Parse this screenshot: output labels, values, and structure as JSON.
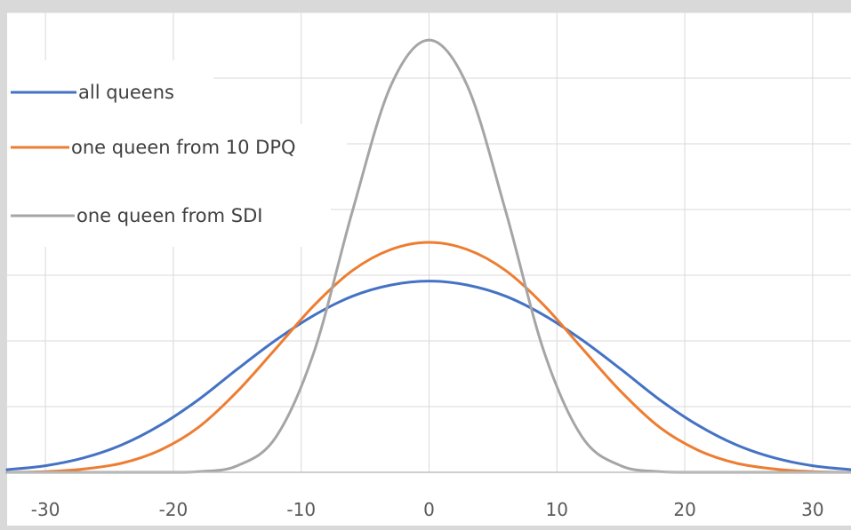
{
  "chart_data": {
    "type": "line",
    "title": "",
    "xlabel": "",
    "ylabel": "",
    "xlim": [
      -33,
      33
    ],
    "ylim": [
      0,
      0.07
    ],
    "x_ticks": [
      -30,
      -20,
      -10,
      0,
      10,
      20,
      30
    ],
    "x_tick_labels": [
      "-30",
      "-20",
      "-10",
      "0",
      "10",
      "20",
      "30"
    ],
    "grid": true,
    "legend_position": "top-left",
    "series": [
      {
        "name": "all queens",
        "color": "#4472c4",
        "x": [
          -33,
          -30,
          -27,
          -24,
          -21,
          -18,
          -15,
          -12,
          -9,
          -6,
          -3,
          0,
          3,
          6,
          9,
          12,
          15,
          18,
          21,
          24,
          27,
          30,
          33
        ],
        "y": [
          0.0004,
          0.001,
          0.0022,
          0.0042,
          0.0072,
          0.0111,
          0.0157,
          0.0201,
          0.0239,
          0.0268,
          0.0285,
          0.0291,
          0.0285,
          0.0268,
          0.0239,
          0.0201,
          0.0157,
          0.0111,
          0.0072,
          0.0042,
          0.0022,
          0.001,
          0.0004
        ]
      },
      {
        "name": "one queen from 10 DPQ",
        "color": "#ed7d31",
        "x": [
          -33,
          -30,
          -27,
          -24,
          -21,
          -18,
          -15,
          -12,
          -9,
          -6,
          -3,
          0,
          3,
          6,
          9,
          12,
          15,
          18,
          21,
          24,
          27,
          30,
          33
        ],
        "y": [
          0.0,
          0.0001,
          0.0005,
          0.0014,
          0.0034,
          0.0069,
          0.0123,
          0.0188,
          0.0254,
          0.0307,
          0.0339,
          0.035,
          0.0339,
          0.0307,
          0.0254,
          0.0188,
          0.0123,
          0.0069,
          0.0034,
          0.0014,
          0.0005,
          0.0001,
          0.0
        ]
      },
      {
        "name": "one queen from SDI",
        "color": "#a5a5a5",
        "x": [
          -33,
          -30,
          -27,
          -24,
          -21,
          -18,
          -15,
          -12,
          -9,
          -6,
          -3,
          0,
          3,
          6,
          9,
          12,
          15,
          18,
          21,
          24,
          27,
          30,
          33
        ],
        "y": [
          0.0,
          0.0,
          0.0,
          0.0,
          0.0,
          0.0001,
          0.001,
          0.0053,
          0.0183,
          0.0397,
          0.0588,
          0.0658,
          0.0588,
          0.0397,
          0.0183,
          0.0053,
          0.001,
          0.0001,
          0.0,
          0.0,
          0.0,
          0.0,
          0.0
        ]
      }
    ]
  }
}
